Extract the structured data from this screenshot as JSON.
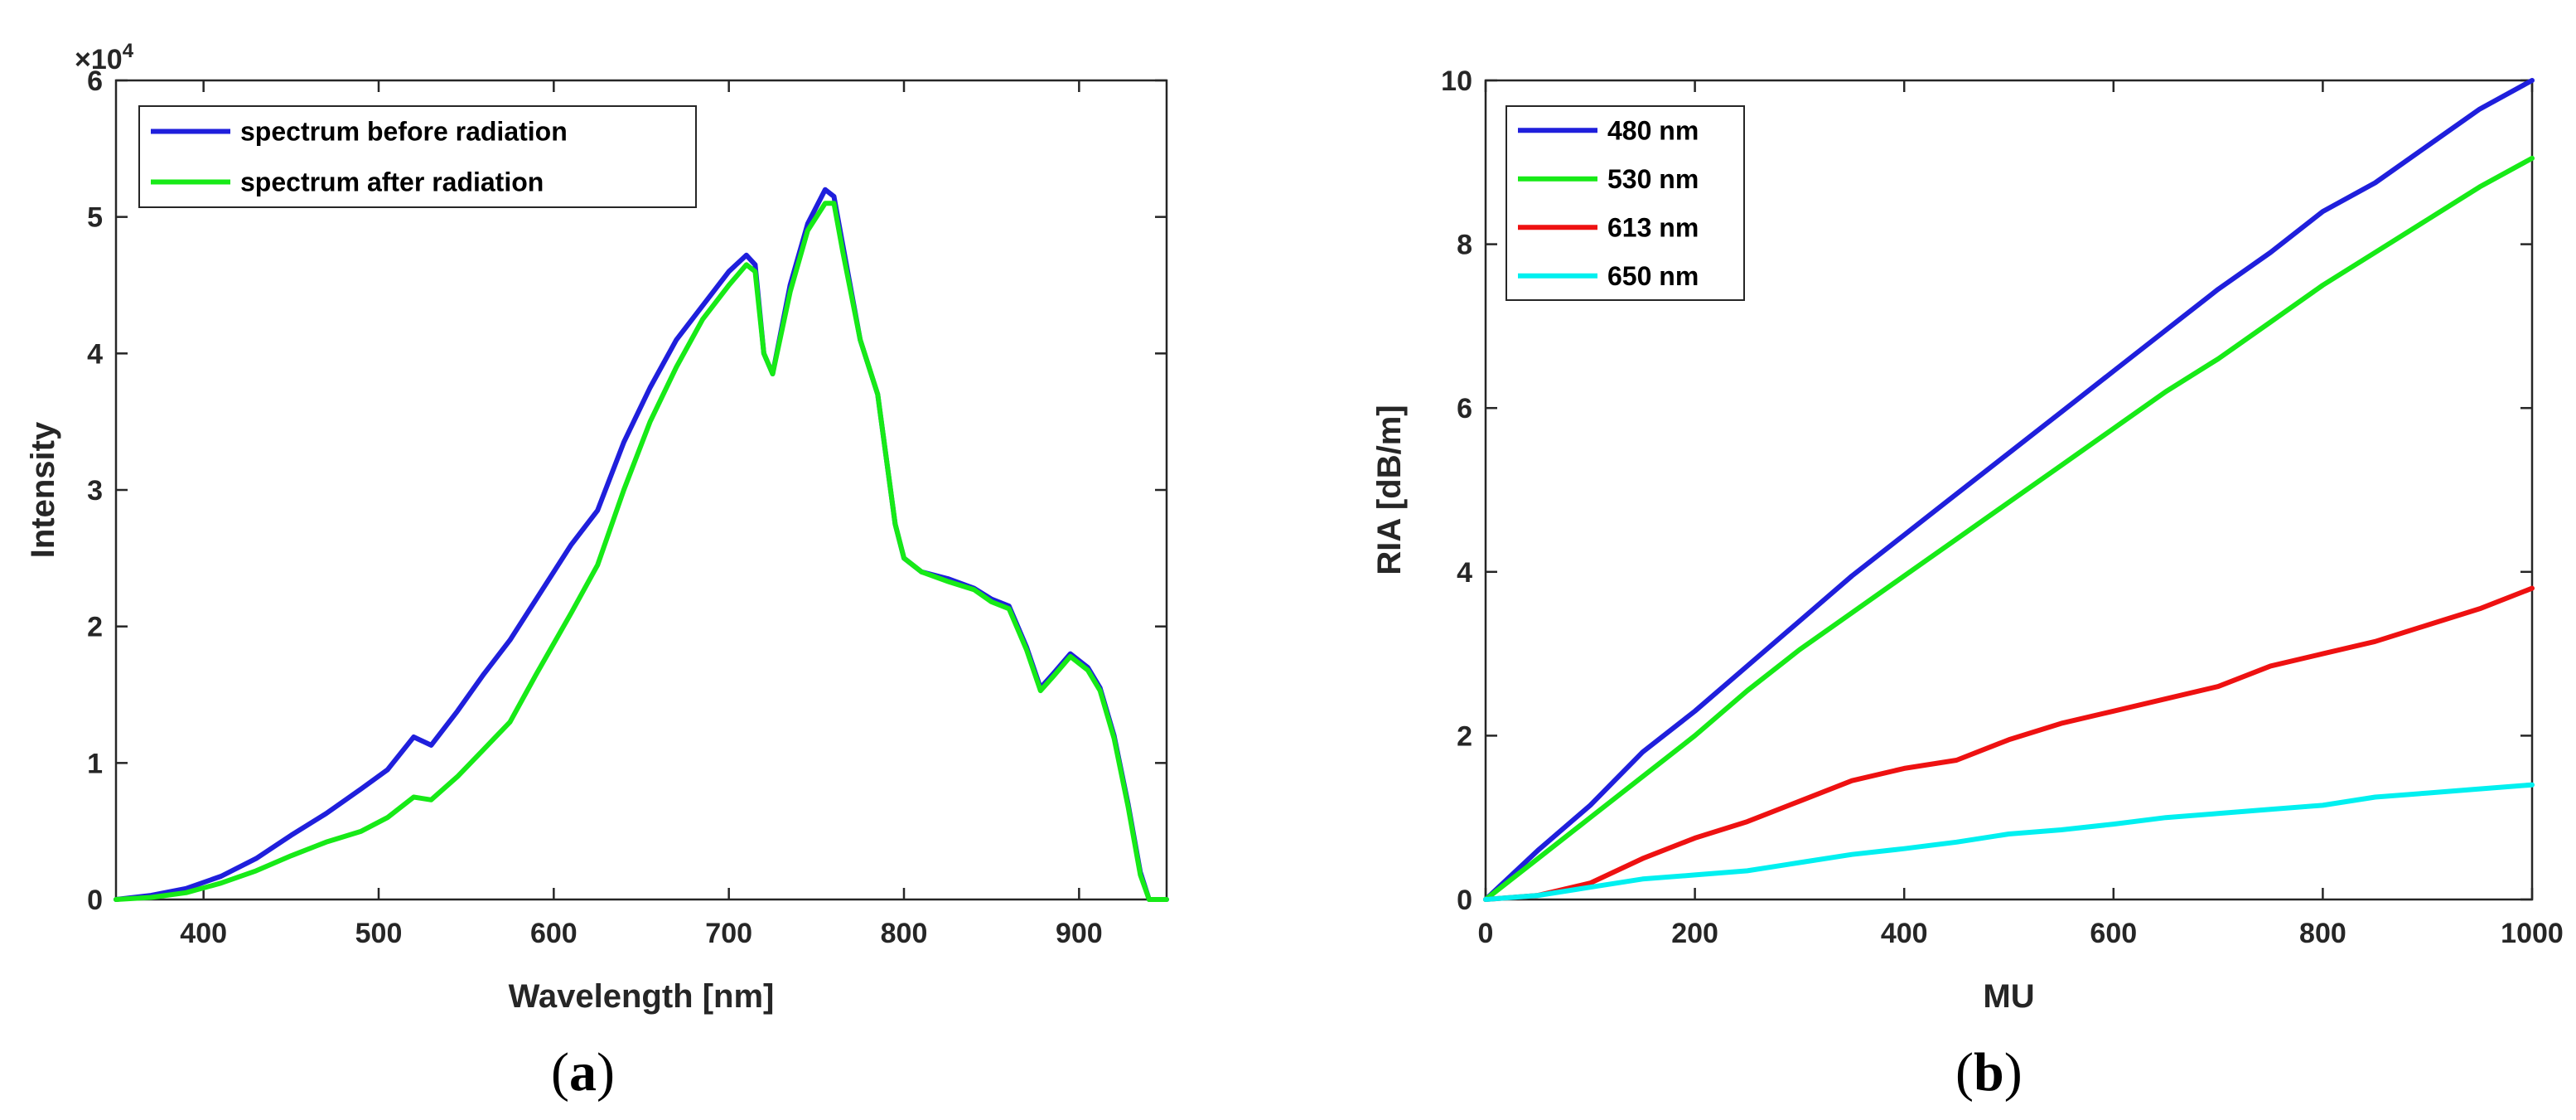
{
  "chart_data": [
    {
      "id": "a",
      "type": "line",
      "panel_label": "a",
      "xlabel": "Wavelength [nm]",
      "ylabel": "Intensity",
      "xlim": [
        350,
        950
      ],
      "ylim": [
        0,
        60000
      ],
      "x_ticks": [
        400,
        500,
        600,
        700,
        800,
        900
      ],
      "y_ticks": [
        0,
        10000,
        20000,
        30000,
        40000,
        50000,
        60000
      ],
      "y_tick_labels": [
        "0",
        "1",
        "2",
        "3",
        "4",
        "5",
        "6"
      ],
      "y_exponent": {
        "base": "×10",
        "power": "4"
      },
      "legend_position": "top-left",
      "series": [
        {
          "name": "spectrum before radiation",
          "color": "#1f1fdc",
          "x": [
            350,
            370,
            390,
            410,
            430,
            450,
            470,
            490,
            505,
            520,
            530,
            545,
            560,
            575,
            590,
            610,
            625,
            640,
            655,
            670,
            685,
            700,
            710,
            715,
            720,
            725,
            735,
            745,
            755,
            760,
            765,
            775,
            785,
            795,
            800,
            810,
            825,
            840,
            850,
            860,
            870,
            878,
            885,
            895,
            905,
            912,
            920,
            928,
            935,
            940,
            945,
            950
          ],
          "values": [
            0,
            300,
            800,
            1700,
            3000,
            4700,
            6300,
            8100,
            9500,
            11900,
            11300,
            13800,
            16500,
            19000,
            22000,
            26000,
            28500,
            33500,
            37500,
            41000,
            43500,
            46000,
            47200,
            46500,
            40000,
            38500,
            45000,
            49500,
            52000,
            51500,
            48000,
            41000,
            37000,
            27500,
            25000,
            24000,
            23500,
            22800,
            22000,
            21500,
            18500,
            15500,
            16500,
            18000,
            17000,
            15500,
            12000,
            7000,
            2000,
            0,
            0,
            0
          ]
        },
        {
          "name": "spectrum after radiation",
          "color": "#17ea17",
          "x": [
            350,
            370,
            390,
            410,
            430,
            450,
            470,
            490,
            505,
            520,
            530,
            545,
            560,
            575,
            590,
            610,
            625,
            640,
            655,
            670,
            685,
            700,
            710,
            715,
            720,
            725,
            735,
            745,
            755,
            760,
            765,
            775,
            785,
            795,
            800,
            810,
            825,
            840,
            850,
            860,
            870,
            878,
            885,
            895,
            905,
            912,
            920,
            928,
            935,
            940,
            945,
            950
          ],
          "values": [
            0,
            150,
            500,
            1200,
            2100,
            3200,
            4200,
            5000,
            6000,
            7500,
            7300,
            9000,
            11000,
            13000,
            16500,
            21000,
            24500,
            30000,
            35000,
            39000,
            42500,
            45000,
            46500,
            46000,
            40000,
            38500,
            44500,
            49000,
            51000,
            51000,
            47500,
            41000,
            37000,
            27500,
            25000,
            24000,
            23300,
            22700,
            21800,
            21300,
            18300,
            15300,
            16300,
            17800,
            16800,
            15300,
            11800,
            6800,
            1800,
            0,
            0,
            0
          ]
        }
      ]
    },
    {
      "id": "b",
      "type": "line",
      "panel_label": "b",
      "xlabel": "MU",
      "ylabel": "RIA [dB/m]",
      "xlim": [
        0,
        1000
      ],
      "ylim": [
        0,
        10
      ],
      "x_ticks": [
        0,
        200,
        400,
        600,
        800,
        1000
      ],
      "y_ticks": [
        0,
        2,
        4,
        6,
        8,
        10
      ],
      "legend_position": "top-left",
      "series": [
        {
          "name": "480 nm",
          "color": "#1f1fdc",
          "x": [
            0,
            50,
            100,
            150,
            200,
            250,
            300,
            350,
            400,
            450,
            500,
            550,
            600,
            650,
            700,
            750,
            800,
            850,
            900,
            950,
            1000
          ],
          "values": [
            0,
            0.6,
            1.15,
            1.8,
            2.3,
            2.85,
            3.4,
            3.95,
            4.45,
            4.95,
            5.45,
            5.95,
            6.45,
            6.95,
            7.45,
            7.9,
            8.4,
            8.75,
            9.2,
            9.65,
            10.0
          ]
        },
        {
          "name": "530 nm",
          "color": "#17ea17",
          "x": [
            0,
            50,
            100,
            150,
            200,
            250,
            300,
            350,
            400,
            450,
            500,
            550,
            600,
            650,
            700,
            750,
            800,
            850,
            900,
            950,
            1000
          ],
          "values": [
            0,
            0.5,
            1.0,
            1.5,
            2.0,
            2.55,
            3.05,
            3.5,
            3.95,
            4.4,
            4.85,
            5.3,
            5.75,
            6.2,
            6.6,
            7.05,
            7.5,
            7.9,
            8.3,
            8.7,
            9.05
          ]
        },
        {
          "name": "613 nm",
          "color": "#ee1111",
          "x": [
            0,
            50,
            100,
            150,
            200,
            250,
            300,
            350,
            400,
            450,
            500,
            550,
            600,
            650,
            700,
            750,
            800,
            850,
            900,
            950,
            1000
          ],
          "values": [
            0,
            0.05,
            0.2,
            0.5,
            0.75,
            0.95,
            1.2,
            1.45,
            1.6,
            1.7,
            1.95,
            2.15,
            2.3,
            2.45,
            2.6,
            2.85,
            3.0,
            3.15,
            3.35,
            3.55,
            3.8
          ]
        },
        {
          "name": "650 nm",
          "color": "#00f0f0",
          "x": [
            0,
            50,
            100,
            150,
            200,
            250,
            300,
            350,
            400,
            450,
            500,
            550,
            600,
            650,
            700,
            750,
            800,
            850,
            900,
            950,
            1000
          ],
          "values": [
            0,
            0.05,
            0.15,
            0.25,
            0.3,
            0.35,
            0.45,
            0.55,
            0.62,
            0.7,
            0.8,
            0.85,
            0.92,
            1.0,
            1.05,
            1.1,
            1.15,
            1.25,
            1.3,
            1.35,
            1.4
          ]
        }
      ]
    }
  ]
}
